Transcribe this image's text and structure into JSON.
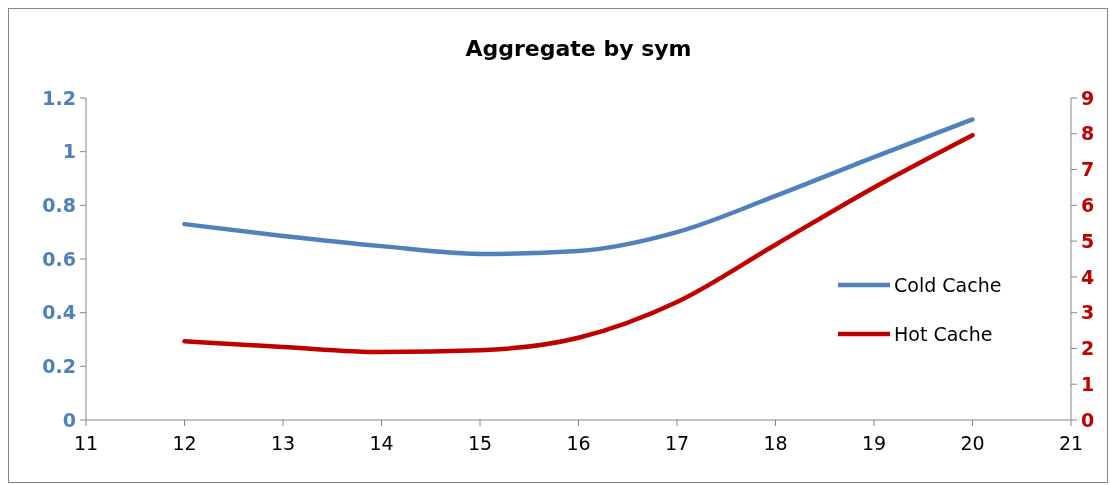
{
  "chart_data": {
    "type": "line",
    "title": "Aggregate by sym",
    "x": [
      12,
      13,
      14,
      15,
      16,
      17,
      18,
      19,
      20
    ],
    "series": [
      {
        "name": "Cold Cache",
        "color": "#4f81bd",
        "values": [
          0.73,
          0.686,
          0.648,
          0.619,
          0.63,
          0.7,
          0.835,
          0.98,
          1.12
        ]
      },
      {
        "name": "Hot Cache",
        "color": "#c00000",
        "axis": "y2",
        "values": [
          2.2,
          2.04,
          1.9,
          1.95,
          2.3,
          3.3,
          4.9,
          6.5,
          7.96
        ]
      }
    ],
    "xlim": [
      11,
      21
    ],
    "xticks": [
      11,
      12,
      13,
      14,
      15,
      16,
      17,
      18,
      19,
      20,
      21
    ],
    "ylim": [
      0,
      1.2
    ],
    "yticks": [
      0,
      0.2,
      0.4,
      0.6,
      0.8,
      1,
      1.2
    ],
    "y2lim": [
      0,
      9
    ],
    "y2ticks": [
      0,
      1,
      2,
      3,
      4,
      5,
      6,
      7,
      8,
      9
    ],
    "grid": false,
    "legend": "right",
    "marker": "none",
    "line_style": "solid"
  }
}
